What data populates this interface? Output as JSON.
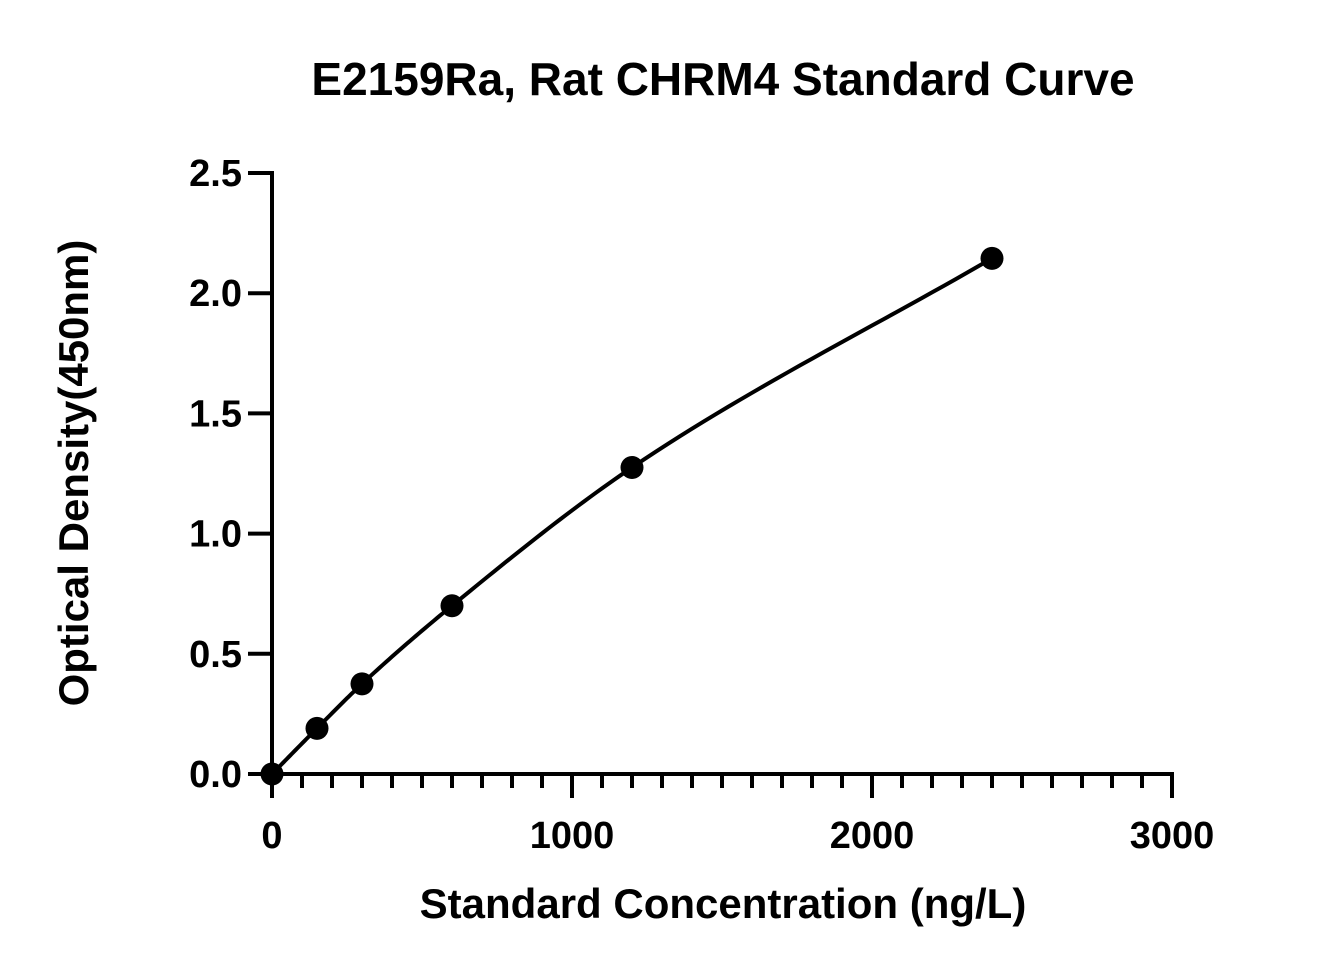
{
  "chart_data": {
    "type": "scatter",
    "title": "E2159Ra, Rat CHRM4 Standard Curve",
    "xlabel": "Standard Concentration (ng/L)",
    "ylabel": "Optical Density(450nm)",
    "xlim": [
      0,
      3000
    ],
    "ylim": [
      0,
      2.5
    ],
    "x_ticks": [
      "0",
      "1000",
      "2000",
      "3000"
    ],
    "y_ticks": [
      "0.0",
      "0.5",
      "1.0",
      "1.5",
      "2.0",
      "2.5"
    ],
    "x_minor_step": 100,
    "grid": false,
    "legend": "none",
    "series": [
      {
        "points": [
          {
            "x": 0,
            "y": 0.0
          },
          {
            "x": 150,
            "y": 0.19
          },
          {
            "x": 300,
            "y": 0.375
          },
          {
            "x": 600,
            "y": 0.7
          },
          {
            "x": 1200,
            "y": 1.275
          },
          {
            "x": 2400,
            "y": 2.145
          }
        ],
        "fit_curve": true,
        "color": "#000000"
      }
    ]
  }
}
